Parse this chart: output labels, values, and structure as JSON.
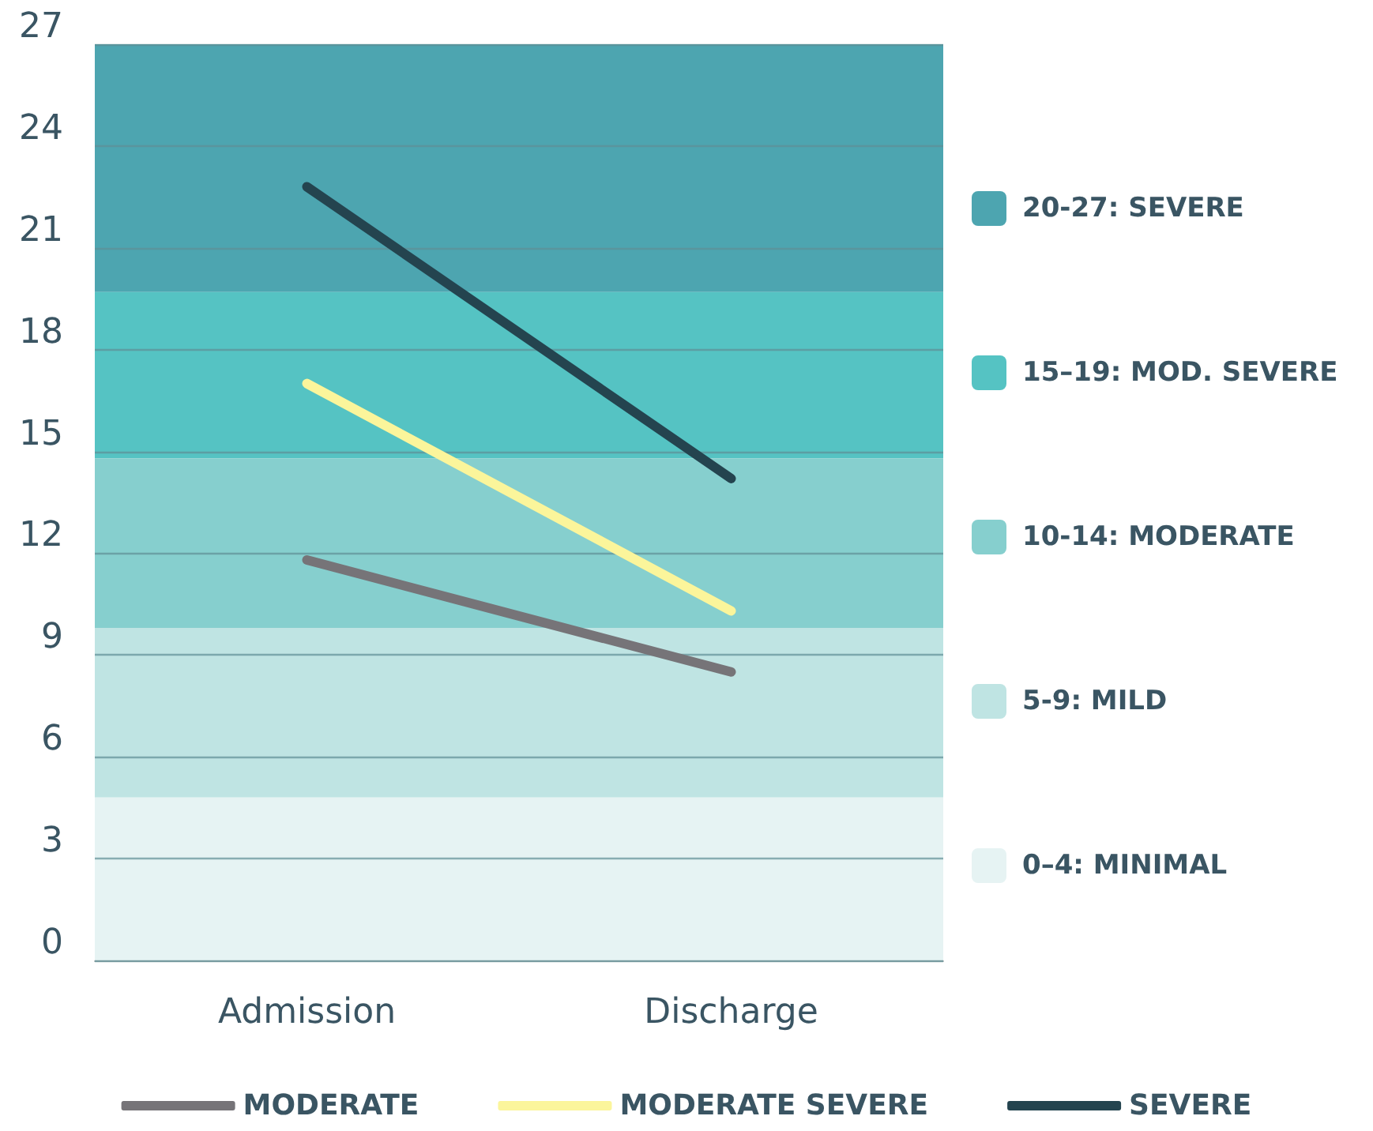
{
  "chart_data": {
    "type": "line",
    "categories": [
      "Admission",
      "Discharge"
    ],
    "series": [
      {
        "name": "MODERATE",
        "color": "#767478",
        "values": [
          11.8,
          8.5
        ]
      },
      {
        "name": "MODERATE SEVERE",
        "color": "#fbf59b",
        "values": [
          17.0,
          10.3
        ]
      },
      {
        "name": "SEVERE",
        "color": "#24444f",
        "values": [
          22.8,
          14.2
        ]
      }
    ],
    "bands": [
      {
        "axis": "y",
        "from": 19.7,
        "to": 27,
        "label": "20-27: SEVERE",
        "color": "#4da5b0"
      },
      {
        "axis": "y",
        "from": 14.8,
        "to": 19.7,
        "label": "15–19: MOD. SEVERE",
        "color": "#55c3c3"
      },
      {
        "axis": "y",
        "from": 9.8,
        "to": 14.8,
        "label": "10-14: MODERATE",
        "color": "#86cfce"
      },
      {
        "axis": "y",
        "from": 4.8,
        "to": 9.8,
        "label": "5-9: MILD",
        "color": "#bfe4e3"
      },
      {
        "axis": "y",
        "from": 0,
        "to": 4.8,
        "label": "0–4: MINIMAL",
        "color": "#e6f3f3"
      }
    ],
    "ylim": [
      0,
      27
    ],
    "yticks": [
      0,
      3,
      6,
      9,
      12,
      15,
      18,
      21,
      24,
      27
    ],
    "grid": "y",
    "legend": "bottom",
    "marker": "none",
    "line_style": "solid"
  }
}
